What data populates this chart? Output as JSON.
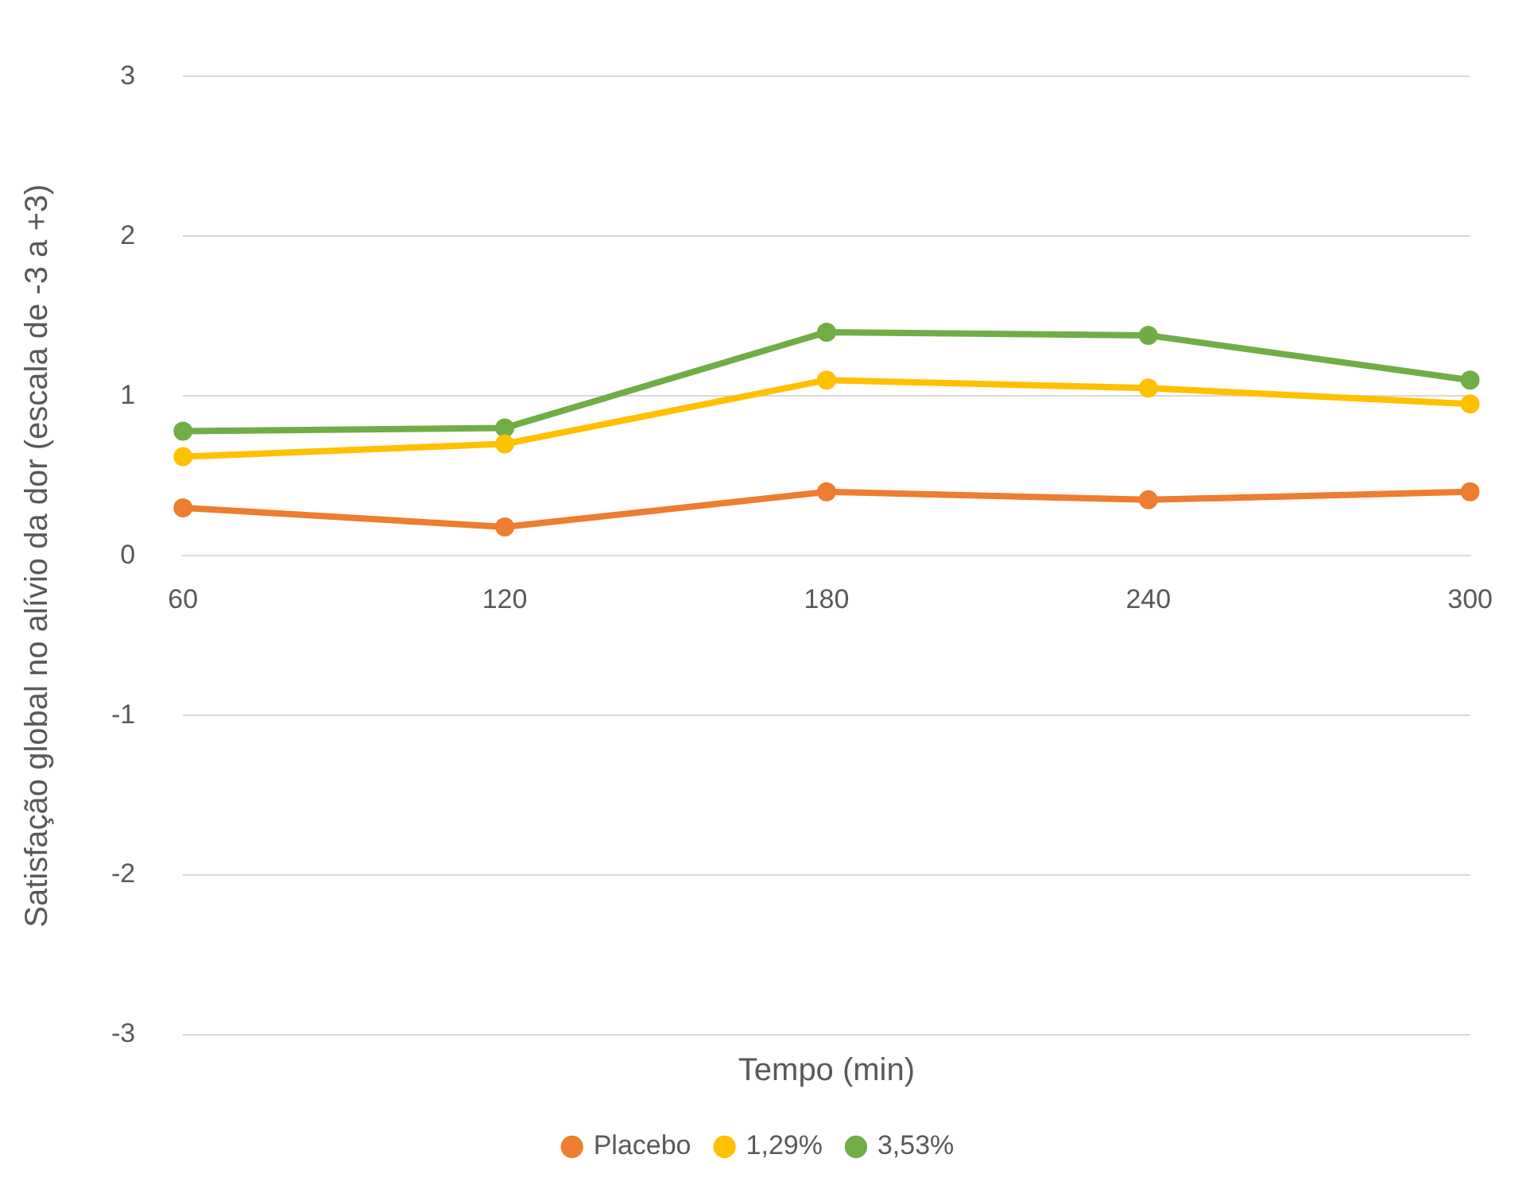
{
  "chart_data": {
    "type": "line",
    "xlabel": "Tempo (min)",
    "ylabel": "Satisfação global no alívio da dor (escala de -3 a +3)",
    "categories": [
      "60",
      "120",
      "180",
      "240",
      "300"
    ],
    "series": [
      {
        "name": "Placebo",
        "color": "#ed7d31",
        "values": [
          0.3,
          0.18,
          0.4,
          0.35,
          0.4
        ]
      },
      {
        "name": "1,29%",
        "color": "#ffc000",
        "values": [
          0.62,
          0.7,
          1.1,
          1.05,
          0.95
        ]
      },
      {
        "name": "3,53%",
        "color": "#70ad47",
        "values": [
          0.78,
          0.8,
          1.4,
          1.38,
          1.1
        ]
      }
    ],
    "ylim": [
      -3,
      3
    ],
    "yticks": [
      -3,
      -2,
      -1,
      0,
      1,
      2,
      3
    ],
    "grid": "y",
    "legend": "bottom",
    "marker": "circle",
    "line_style": "solid"
  }
}
